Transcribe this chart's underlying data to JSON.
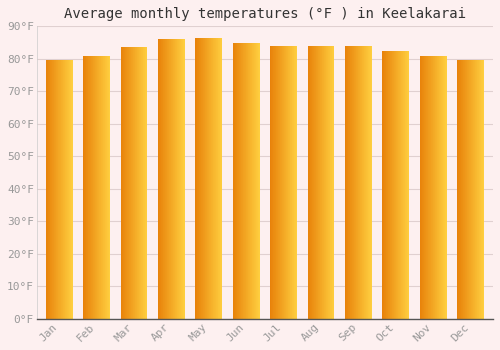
{
  "title": "Average monthly temperatures (°F ) in Keelakarai",
  "months": [
    "Jan",
    "Feb",
    "Mar",
    "Apr",
    "May",
    "Jun",
    "Jul",
    "Aug",
    "Sep",
    "Oct",
    "Nov",
    "Dec"
  ],
  "values": [
    79.5,
    81.0,
    83.5,
    86.0,
    86.5,
    85.0,
    84.0,
    84.0,
    84.0,
    82.5,
    81.0,
    79.5
  ],
  "bar_color_left": "#E8820A",
  "bar_color_right": "#FFD040",
  "ylim": [
    0,
    90
  ],
  "yticks": [
    0,
    10,
    20,
    30,
    40,
    50,
    60,
    70,
    80,
    90
  ],
  "ytick_labels": [
    "0°F",
    "10°F",
    "20°F",
    "30°F",
    "40°F",
    "50°F",
    "60°F",
    "70°F",
    "80°F",
    "90°F"
  ],
  "background_color": "#fdf0f0",
  "plot_bg_color": "#fdf0f0",
  "grid_color": "#e0d0d0",
  "title_fontsize": 10,
  "tick_fontsize": 8,
  "tick_color": "#999999",
  "font_family": "monospace",
  "bar_width": 0.72
}
